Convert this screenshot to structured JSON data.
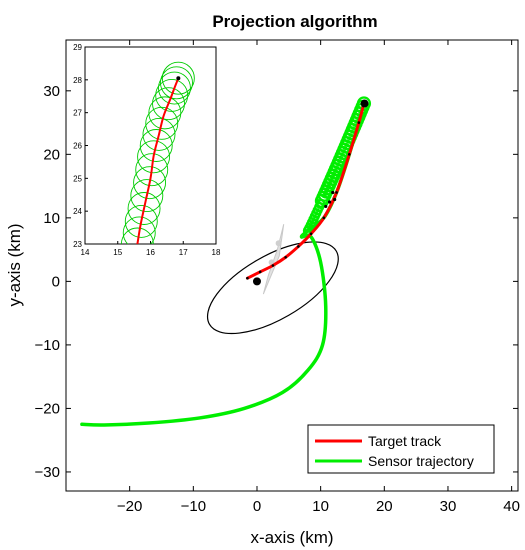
{
  "chart_data": {
    "type": "line",
    "title": "Projection algorithm",
    "xlabel": "x-axis (km)",
    "ylabel": "y-axis (km)",
    "xlim": [
      -30,
      41
    ],
    "ylim": [
      -33,
      38
    ],
    "xticks": [
      -20,
      -10,
      0,
      10,
      20,
      30,
      40
    ],
    "yticks": [
      -30,
      -20,
      -10,
      0,
      10,
      20,
      30
    ],
    "grid": false,
    "legend_position": "bottom-right",
    "series": [
      {
        "name": "Target track",
        "color": "#ff0000",
        "x": [
          -1.5,
          0.5,
          2.5,
          4.5,
          6.5,
          8.5,
          10.5,
          12.5,
          14.5,
          16.0,
          16.8
        ],
        "y": [
          0.5,
          1.5,
          2.5,
          3.8,
          5.5,
          7.5,
          10.0,
          14.0,
          20.0,
          25.0,
          28.0
        ]
      },
      {
        "name": "Sensor trajectory",
        "color": "#00ee00",
        "x": [
          16.8,
          14.5,
          12.5,
          10.5,
          8.0,
          7.0,
          8.5,
          10.0,
          10.8,
          10.3,
          8.0,
          4.0,
          -2.0,
          -9.0,
          -17.0,
          -24.0,
          -27.5
        ],
        "y": [
          28.0,
          20.0,
          14.0,
          10.0,
          8.0,
          7.0,
          7.0,
          3.0,
          -4.0,
          -10.0,
          -14.0,
          -17.5,
          -20.0,
          -21.5,
          -22.3,
          -22.6,
          -22.5
        ]
      }
    ],
    "markers": [
      {
        "name": "target-end",
        "x": 16.9,
        "y": 28.0
      },
      {
        "name": "sensor-origin",
        "x": 0.0,
        "y": 0.0
      }
    ],
    "ellipse": {
      "center": [
        2.5,
        -1.0
      ],
      "semi_major": 11.5,
      "semi_minor": 5.0,
      "angle_deg": 30
    },
    "inset": {
      "xlim": [
        14,
        18
      ],
      "ylim": [
        23,
        29
      ],
      "xticks": [
        14,
        15,
        16,
        17,
        18
      ],
      "yticks": [
        23,
        24,
        25,
        26,
        27,
        28,
        29
      ],
      "track_x": [
        15.6,
        15.7,
        15.85,
        16.0,
        16.1,
        16.25,
        16.4,
        16.6,
        16.75,
        16.85
      ],
      "track_y": [
        23.0,
        23.6,
        24.3,
        25.0,
        25.7,
        26.3,
        26.9,
        27.4,
        27.8,
        28.05
      ]
    }
  },
  "legend": {
    "target": "Target track",
    "sensor": "Sensor trajectory"
  },
  "colors": {
    "target": "#ff0000",
    "sensor": "#00ee00",
    "ellipse": "#000000"
  }
}
